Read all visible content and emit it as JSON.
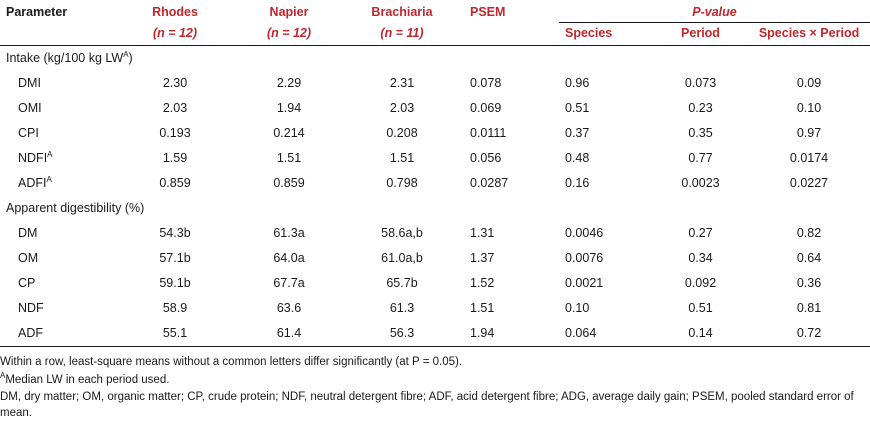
{
  "headers": {
    "parameter": "Parameter",
    "rhodes": "Rhodes",
    "napier": "Napier",
    "brachiaria": "Brachiaria",
    "psem": "PSEM",
    "pvalue": "P-value",
    "rhodes_n": "(n = 12)",
    "napier_n": "(n = 12)",
    "brachiaria_n": "(n = 11)",
    "species": "Species",
    "period": "Period",
    "species_x_period": "Species × Period"
  },
  "sections": [
    {
      "title": "Intake (kg/100 kg LW",
      "title_sup": "A",
      "title_end": ")",
      "rows": [
        {
          "param": "DMI",
          "sup": "",
          "rhodes": "2.30",
          "napier": "2.29",
          "brachiaria": "2.31",
          "psem": "0.078",
          "species": "0.96",
          "period": "0.073",
          "sxp": "0.09"
        },
        {
          "param": "OMI",
          "sup": "",
          "rhodes": "2.03",
          "napier": "1.94",
          "brachiaria": "2.03",
          "psem": "0.069",
          "species": "0.51",
          "period": "0.23",
          "sxp": "0.10"
        },
        {
          "param": "CPI",
          "sup": "",
          "rhodes": "0.193",
          "napier": "0.214",
          "brachiaria": "0.208",
          "psem": "0.0111",
          "species": "0.37",
          "period": "0.35",
          "sxp": "0.97"
        },
        {
          "param": "NDFI",
          "sup": "A",
          "rhodes": "1.59",
          "napier": "1.51",
          "brachiaria": "1.51",
          "psem": "0.056",
          "species": "0.48",
          "period": "0.77",
          "sxp": "0.0174"
        },
        {
          "param": "ADFI",
          "sup": "A",
          "rhodes": "0.859",
          "napier": "0.859",
          "brachiaria": "0.798",
          "psem": "0.0287",
          "species": "0.16",
          "period": "0.0023",
          "sxp": "0.0227"
        }
      ]
    },
    {
      "title": "Apparent digestibility (%)",
      "title_sup": "",
      "title_end": "",
      "rows": [
        {
          "param": "DM",
          "sup": "",
          "rhodes": "54.3b",
          "napier": "61.3a",
          "brachiaria": "58.6a,b",
          "psem": "1.31",
          "species": "0.0046",
          "period": "0.27",
          "sxp": "0.82"
        },
        {
          "param": "OM",
          "sup": "",
          "rhodes": "57.1b",
          "napier": "64.0a",
          "brachiaria": "61.0a,b",
          "psem": "1.37",
          "species": "0.0076",
          "period": "0.34",
          "sxp": "0.64"
        },
        {
          "param": "CP",
          "sup": "",
          "rhodes": "59.1b",
          "napier": "67.7a",
          "brachiaria": "65.7b",
          "psem": "1.52",
          "species": "0.0021",
          "period": "0.092",
          "sxp": "0.36"
        },
        {
          "param": "NDF",
          "sup": "",
          "rhodes": "58.9",
          "napier": "63.6",
          "brachiaria": "61.3",
          "psem": "1.51",
          "species": "0.10",
          "period": "0.51",
          "sxp": "0.81"
        },
        {
          "param": "ADF",
          "sup": "",
          "rhodes": "55.1",
          "napier": "61.4",
          "brachiaria": "56.3",
          "psem": "1.94",
          "species": "0.064",
          "period": "0.14",
          "sxp": "0.72"
        }
      ]
    }
  ],
  "footnotes": {
    "note1": "Within a row, least-square means without a common letters differ significantly (at P = 0.05).",
    "note2_sup": "A",
    "note2": "Median LW in each period used.",
    "note3": "DM, dry matter; OM, organic matter; CP, crude protein; NDF, neutral detergent fibre; ADF, acid detergent fibre; ADG, average daily gain; PSEM, pooled standard error of mean."
  }
}
